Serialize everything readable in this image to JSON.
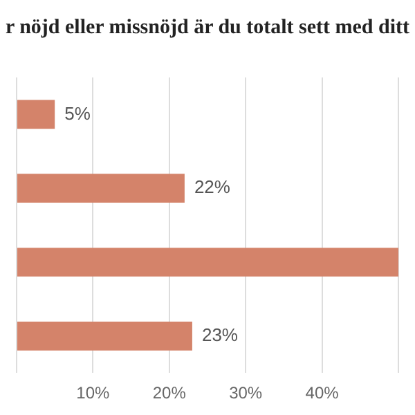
{
  "chart_data": {
    "type": "bar",
    "orientation": "horizontal",
    "title": "r nöjd eller missnöjd är du totalt sett med ditt",
    "categories": [
      null,
      null,
      null,
      null
    ],
    "values": [
      5,
      22,
      50,
      23
    ],
    "color": "#d4836a",
    "value_labels": [
      "5%",
      "22%",
      null,
      "23%"
    ],
    "xlim": [
      0,
      50
    ],
    "xticks": [
      {
        "value": 0,
        "label": null
      },
      {
        "value": 10,
        "label": "10%"
      },
      {
        "value": 20,
        "label": "20%"
      },
      {
        "value": 30,
        "label": "30%"
      },
      {
        "value": 40,
        "label": "40%"
      },
      {
        "value": 50,
        "label": null
      }
    ],
    "grid": "x",
    "legend": false
  }
}
